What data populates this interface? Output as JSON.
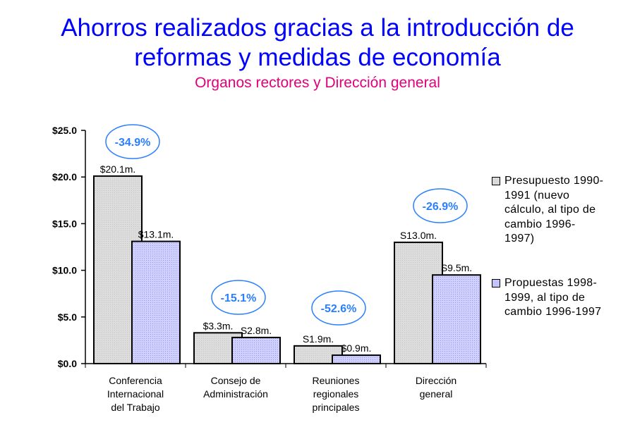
{
  "chart_data": {
    "type": "bar",
    "title": "Ahorros realizados gracias a la introducción de reformas y medidas de economía",
    "title_lines": [
      "Ahorros realizados gracias a la introducción de",
      "reformas y medidas de economía"
    ],
    "subtitle": "Organos rectores y Dirección general",
    "categories": [
      [
        "Conferencia",
        "Internacional",
        "del Trabajo"
      ],
      [
        "Consejo de",
        "Administración"
      ],
      [
        "Reuniones",
        "regionales",
        "principales"
      ],
      [
        "Dirección",
        "general"
      ]
    ],
    "series": [
      {
        "name": "Presupuesto 1990-1991 (nuevo cálculo, al tipo de cambio 1996-1997)",
        "legend_lines": [
          "Presupuesto 1990-",
          "1991 (nuevo",
          "cálculo, al tipo de",
          "cambio 1996-",
          "1997)"
        ],
        "values": [
          20.1,
          3.3,
          1.9,
          13.0
        ],
        "labels": [
          "$20.1m.",
          "$3.3m.",
          "S1.9m.",
          "S13.0m."
        ],
        "color": "#d9d9d9"
      },
      {
        "name": "Propuestas 1998-1999, al tipo de cambio 1996-1997",
        "legend_lines": [
          "Propuestas 1998-",
          "1999, al tipo de",
          "cambio 1996-1997"
        ],
        "values": [
          13.1,
          2.8,
          0.9,
          9.5
        ],
        "labels": [
          "$13.1m.",
          "S2.8m.",
          "$0.9m.",
          "S9.5m."
        ],
        "color": "#c4c4ff"
      }
    ],
    "annotations": [
      "-34.9%",
      "-15.1%",
      "-52.6%",
      "-26.9%"
    ],
    "annotation_color": "#2a7fff",
    "yticks": [
      "$0.0",
      "$5.0",
      "$10.0",
      "$15.0",
      "$20.0",
      "$25.0"
    ],
    "ylim": [
      0,
      25
    ],
    "grid": false,
    "legend_position": "right"
  }
}
